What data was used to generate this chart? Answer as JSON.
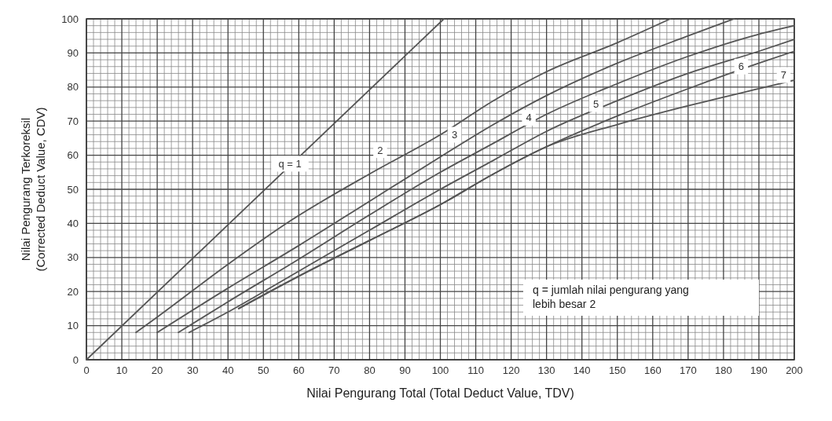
{
  "chart_data": {
    "type": "line",
    "xlabel": "Nilai Pengurang Total (Total Deduct Value, TDV)",
    "ylabel": "Nilai Pengurang Terkoreksil (Corrected Deduct Value, CDV)",
    "xlim": [
      0,
      200
    ],
    "ylim": [
      0,
      100
    ],
    "xticks": [
      0,
      10,
      20,
      30,
      40,
      50,
      60,
      70,
      80,
      90,
      100,
      110,
      120,
      130,
      140,
      150,
      160,
      170,
      180,
      190,
      200
    ],
    "yticks": [
      0,
      10,
      20,
      30,
      40,
      50,
      60,
      70,
      80,
      90,
      100
    ],
    "grid": true,
    "line_style": "solid",
    "series": [
      {
        "color": "#555555",
        "x": [
          0,
          101
        ],
        "values": [
          0,
          100
        ]
      },
      {
        "color": "#555555",
        "x": [
          14,
          20,
          40,
          58,
          80,
          100,
          115,
          130,
          150,
          165
        ],
        "values": [
          8,
          12.5,
          28,
          41,
          54.5,
          66,
          76,
          84.5,
          93,
          100
        ]
      },
      {
        "color": "#555555",
        "x": [
          20,
          40,
          60,
          80,
          100,
          115,
          130,
          150,
          170,
          183
        ],
        "values": [
          8,
          21,
          33.5,
          46.5,
          59.5,
          69,
          77.5,
          87,
          95,
          100
        ]
      },
      {
        "color": "#555555",
        "x": [
          26,
          40,
          60,
          80,
          100,
          115,
          130,
          150,
          170,
          190,
          200
        ],
        "values": [
          8,
          17,
          29.5,
          42.5,
          55,
          63.5,
          72,
          81,
          89,
          95.5,
          98
        ]
      },
      {
        "color": "#555555",
        "x": [
          29,
          40,
          60,
          80,
          100,
          115,
          130,
          150,
          170,
          190,
          200
        ],
        "values": [
          8,
          14,
          26,
          38,
          50,
          58.5,
          67,
          76,
          84,
          90.5,
          94
        ]
      },
      {
        "color": "#555555",
        "x": [
          43,
          60,
          80,
          100,
          115,
          130,
          150,
          170,
          190,
          200
        ],
        "values": [
          15,
          24.5,
          35,
          45.5,
          54.5,
          62.5,
          71.5,
          79.5,
          87,
          90.5
        ]
      },
      {
        "color": "#555555",
        "x": [
          43,
          60,
          80,
          100,
          115,
          130,
          150,
          170,
          190,
          200
        ],
        "values": [
          15,
          24.5,
          35,
          45.5,
          54.5,
          62.5,
          69,
          74.5,
          79.5,
          82
        ]
      }
    ],
    "annotations": [
      {
        "text": "q = 1",
        "x": 57.5,
        "y": 57.5
      },
      {
        "text": "2",
        "x": 83,
        "y": 61.5
      },
      {
        "text": "3",
        "x": 104,
        "y": 66
      },
      {
        "text": "4",
        "x": 125,
        "y": 71
      },
      {
        "text": "5",
        "x": 144,
        "y": 75
      },
      {
        "text": "6",
        "x": 185,
        "y": 86
      },
      {
        "text": "7",
        "x": 197,
        "y": 83.5
      },
      "q = jumlah nilai pengurang yang lebih besar 2"
    ]
  }
}
